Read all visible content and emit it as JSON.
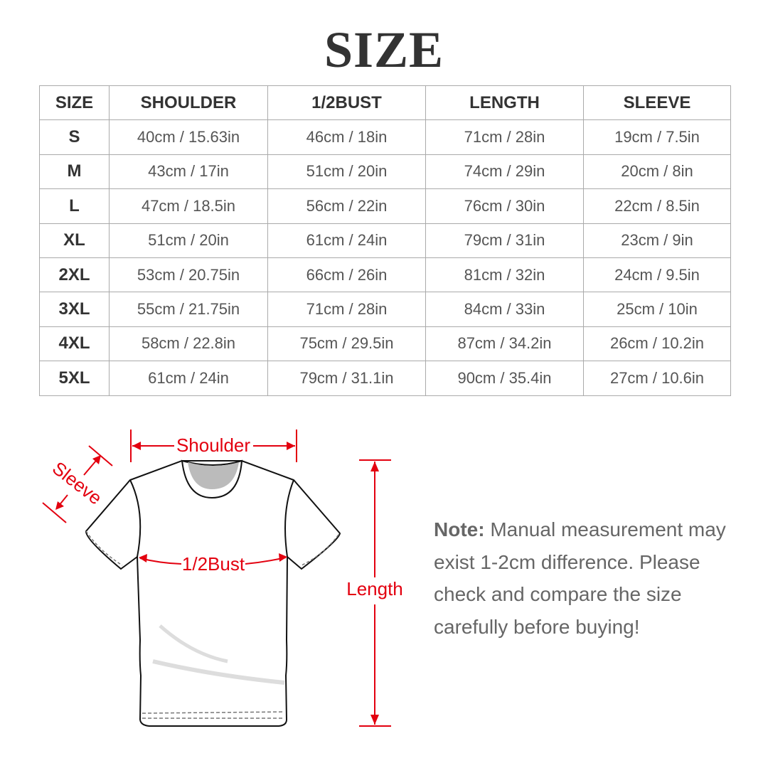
{
  "title": "SIZE",
  "table": {
    "headers": [
      "SIZE",
      "SHOULDER",
      "1/2BUST",
      "LENGTH",
      "SLEEVE"
    ],
    "rows": [
      [
        "S",
        "40cm / 15.63in",
        "46cm / 18in",
        "71cm / 28in",
        "19cm / 7.5in"
      ],
      [
        "M",
        "43cm / 17in",
        "51cm / 20in",
        "74cm / 29in",
        "20cm / 8in"
      ],
      [
        "L",
        "47cm / 18.5in",
        "56cm / 22in",
        "76cm / 30in",
        "22cm / 8.5in"
      ],
      [
        "XL",
        "51cm / 20in",
        "61cm / 24in",
        "79cm / 31in",
        "23cm / 9in"
      ],
      [
        "2XL",
        "53cm / 20.75in",
        "66cm / 26in",
        "81cm / 32in",
        "24cm / 9.5in"
      ],
      [
        "3XL",
        "55cm / 21.75in",
        "71cm / 28in",
        "84cm / 33in",
        "25cm / 10in"
      ],
      [
        "4XL",
        "58cm / 22.8in",
        "75cm / 29.5in",
        "87cm / 34.2in",
        "26cm / 10.2in"
      ],
      [
        "5XL",
        "61cm / 24in",
        "79cm / 31.1in",
        "90cm / 35.4in",
        "27cm / 10.6in"
      ]
    ]
  },
  "diagram": {
    "shoulder_label": "Shoulder",
    "sleeve_label": "Sleeve",
    "bust_label": "1/2Bust",
    "length_label": "Length",
    "accent_color": "#e3000f"
  },
  "note": {
    "label": "Note:",
    "text": " Manual measurement may exist 1-2cm difference. Please check and compare the size carefully before buying!"
  }
}
